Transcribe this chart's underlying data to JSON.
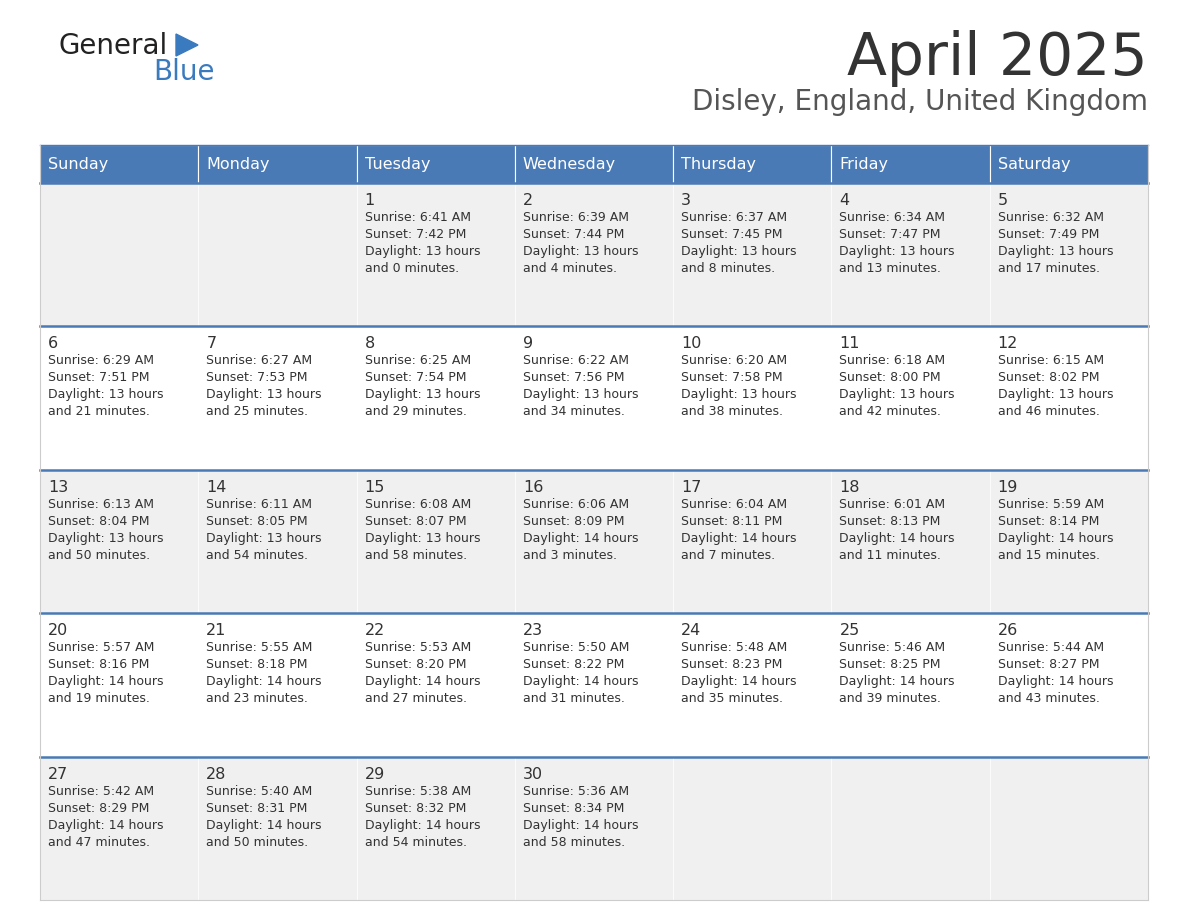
{
  "title": "April 2025",
  "subtitle": "Disley, England, United Kingdom",
  "header_color": "#4a7ab5",
  "header_text_color": "#FFFFFF",
  "days_of_week": [
    "Sunday",
    "Monday",
    "Tuesday",
    "Wednesday",
    "Thursday",
    "Friday",
    "Saturday"
  ],
  "background_color": "#FFFFFF",
  "cell_bg_row0": "#F0F0F0",
  "cell_bg_row1": "#FFFFFF",
  "row_separator_color": "#4a7ab5",
  "title_color": "#333333",
  "subtitle_color": "#555555",
  "text_color": "#333333",
  "logo_black_color": "#222222",
  "logo_blue_color": "#3a7abf",
  "triangle_color": "#3a7abf",
  "calendar": [
    [
      {
        "day": "",
        "sunrise": "",
        "sunset": "",
        "daylight_l1": "",
        "daylight_l2": ""
      },
      {
        "day": "",
        "sunrise": "",
        "sunset": "",
        "daylight_l1": "",
        "daylight_l2": ""
      },
      {
        "day": "1",
        "sunrise": "Sunrise: 6:41 AM",
        "sunset": "Sunset: 7:42 PM",
        "daylight_l1": "Daylight: 13 hours",
        "daylight_l2": "and 0 minutes."
      },
      {
        "day": "2",
        "sunrise": "Sunrise: 6:39 AM",
        "sunset": "Sunset: 7:44 PM",
        "daylight_l1": "Daylight: 13 hours",
        "daylight_l2": "and 4 minutes."
      },
      {
        "day": "3",
        "sunrise": "Sunrise: 6:37 AM",
        "sunset": "Sunset: 7:45 PM",
        "daylight_l1": "Daylight: 13 hours",
        "daylight_l2": "and 8 minutes."
      },
      {
        "day": "4",
        "sunrise": "Sunrise: 6:34 AM",
        "sunset": "Sunset: 7:47 PM",
        "daylight_l1": "Daylight: 13 hours",
        "daylight_l2": "and 13 minutes."
      },
      {
        "day": "5",
        "sunrise": "Sunrise: 6:32 AM",
        "sunset": "Sunset: 7:49 PM",
        "daylight_l1": "Daylight: 13 hours",
        "daylight_l2": "and 17 minutes."
      }
    ],
    [
      {
        "day": "6",
        "sunrise": "Sunrise: 6:29 AM",
        "sunset": "Sunset: 7:51 PM",
        "daylight_l1": "Daylight: 13 hours",
        "daylight_l2": "and 21 minutes."
      },
      {
        "day": "7",
        "sunrise": "Sunrise: 6:27 AM",
        "sunset": "Sunset: 7:53 PM",
        "daylight_l1": "Daylight: 13 hours",
        "daylight_l2": "and 25 minutes."
      },
      {
        "day": "8",
        "sunrise": "Sunrise: 6:25 AM",
        "sunset": "Sunset: 7:54 PM",
        "daylight_l1": "Daylight: 13 hours",
        "daylight_l2": "and 29 minutes."
      },
      {
        "day": "9",
        "sunrise": "Sunrise: 6:22 AM",
        "sunset": "Sunset: 7:56 PM",
        "daylight_l1": "Daylight: 13 hours",
        "daylight_l2": "and 34 minutes."
      },
      {
        "day": "10",
        "sunrise": "Sunrise: 6:20 AM",
        "sunset": "Sunset: 7:58 PM",
        "daylight_l1": "Daylight: 13 hours",
        "daylight_l2": "and 38 minutes."
      },
      {
        "day": "11",
        "sunrise": "Sunrise: 6:18 AM",
        "sunset": "Sunset: 8:00 PM",
        "daylight_l1": "Daylight: 13 hours",
        "daylight_l2": "and 42 minutes."
      },
      {
        "day": "12",
        "sunrise": "Sunrise: 6:15 AM",
        "sunset": "Sunset: 8:02 PM",
        "daylight_l1": "Daylight: 13 hours",
        "daylight_l2": "and 46 minutes."
      }
    ],
    [
      {
        "day": "13",
        "sunrise": "Sunrise: 6:13 AM",
        "sunset": "Sunset: 8:04 PM",
        "daylight_l1": "Daylight: 13 hours",
        "daylight_l2": "and 50 minutes."
      },
      {
        "day": "14",
        "sunrise": "Sunrise: 6:11 AM",
        "sunset": "Sunset: 8:05 PM",
        "daylight_l1": "Daylight: 13 hours",
        "daylight_l2": "and 54 minutes."
      },
      {
        "day": "15",
        "sunrise": "Sunrise: 6:08 AM",
        "sunset": "Sunset: 8:07 PM",
        "daylight_l1": "Daylight: 13 hours",
        "daylight_l2": "and 58 minutes."
      },
      {
        "day": "16",
        "sunrise": "Sunrise: 6:06 AM",
        "sunset": "Sunset: 8:09 PM",
        "daylight_l1": "Daylight: 14 hours",
        "daylight_l2": "and 3 minutes."
      },
      {
        "day": "17",
        "sunrise": "Sunrise: 6:04 AM",
        "sunset": "Sunset: 8:11 PM",
        "daylight_l1": "Daylight: 14 hours",
        "daylight_l2": "and 7 minutes."
      },
      {
        "day": "18",
        "sunrise": "Sunrise: 6:01 AM",
        "sunset": "Sunset: 8:13 PM",
        "daylight_l1": "Daylight: 14 hours",
        "daylight_l2": "and 11 minutes."
      },
      {
        "day": "19",
        "sunrise": "Sunrise: 5:59 AM",
        "sunset": "Sunset: 8:14 PM",
        "daylight_l1": "Daylight: 14 hours",
        "daylight_l2": "and 15 minutes."
      }
    ],
    [
      {
        "day": "20",
        "sunrise": "Sunrise: 5:57 AM",
        "sunset": "Sunset: 8:16 PM",
        "daylight_l1": "Daylight: 14 hours",
        "daylight_l2": "and 19 minutes."
      },
      {
        "day": "21",
        "sunrise": "Sunrise: 5:55 AM",
        "sunset": "Sunset: 8:18 PM",
        "daylight_l1": "Daylight: 14 hours",
        "daylight_l2": "and 23 minutes."
      },
      {
        "day": "22",
        "sunrise": "Sunrise: 5:53 AM",
        "sunset": "Sunset: 8:20 PM",
        "daylight_l1": "Daylight: 14 hours",
        "daylight_l2": "and 27 minutes."
      },
      {
        "day": "23",
        "sunrise": "Sunrise: 5:50 AM",
        "sunset": "Sunset: 8:22 PM",
        "daylight_l1": "Daylight: 14 hours",
        "daylight_l2": "and 31 minutes."
      },
      {
        "day": "24",
        "sunrise": "Sunrise: 5:48 AM",
        "sunset": "Sunset: 8:23 PM",
        "daylight_l1": "Daylight: 14 hours",
        "daylight_l2": "and 35 minutes."
      },
      {
        "day": "25",
        "sunrise": "Sunrise: 5:46 AM",
        "sunset": "Sunset: 8:25 PM",
        "daylight_l1": "Daylight: 14 hours",
        "daylight_l2": "and 39 minutes."
      },
      {
        "day": "26",
        "sunrise": "Sunrise: 5:44 AM",
        "sunset": "Sunset: 8:27 PM",
        "daylight_l1": "Daylight: 14 hours",
        "daylight_l2": "and 43 minutes."
      }
    ],
    [
      {
        "day": "27",
        "sunrise": "Sunrise: 5:42 AM",
        "sunset": "Sunset: 8:29 PM",
        "daylight_l1": "Daylight: 14 hours",
        "daylight_l2": "and 47 minutes."
      },
      {
        "day": "28",
        "sunrise": "Sunrise: 5:40 AM",
        "sunset": "Sunset: 8:31 PM",
        "daylight_l1": "Daylight: 14 hours",
        "daylight_l2": "and 50 minutes."
      },
      {
        "day": "29",
        "sunrise": "Sunrise: 5:38 AM",
        "sunset": "Sunset: 8:32 PM",
        "daylight_l1": "Daylight: 14 hours",
        "daylight_l2": "and 54 minutes."
      },
      {
        "day": "30",
        "sunrise": "Sunrise: 5:36 AM",
        "sunset": "Sunset: 8:34 PM",
        "daylight_l1": "Daylight: 14 hours",
        "daylight_l2": "and 58 minutes."
      },
      {
        "day": "",
        "sunrise": "",
        "sunset": "",
        "daylight_l1": "",
        "daylight_l2": ""
      },
      {
        "day": "",
        "sunrise": "",
        "sunset": "",
        "daylight_l1": "",
        "daylight_l2": ""
      },
      {
        "day": "",
        "sunrise": "",
        "sunset": "",
        "daylight_l1": "",
        "daylight_l2": ""
      }
    ]
  ]
}
